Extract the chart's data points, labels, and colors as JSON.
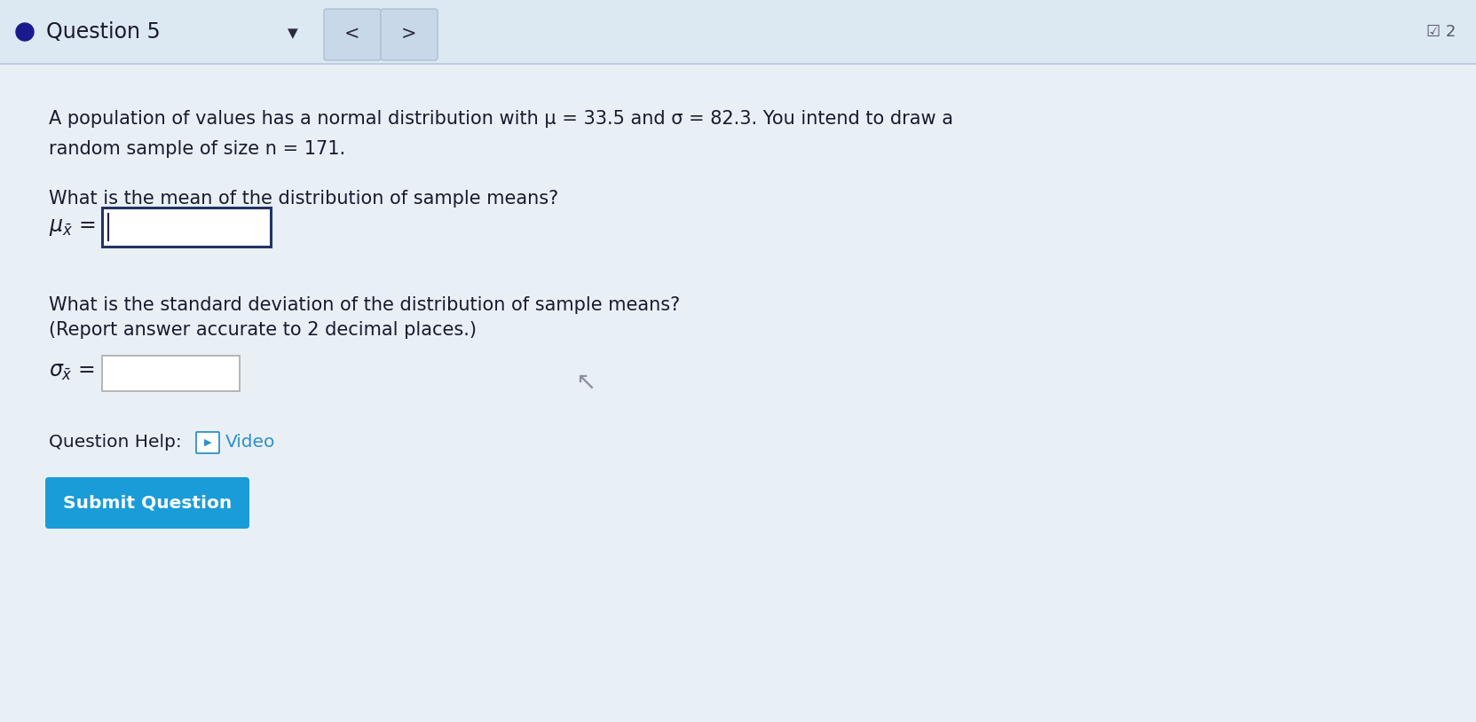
{
  "bg_color": "#d8e4ed",
  "header_bg": "#dce8f2",
  "body_bg": "#e8f0f6",
  "question_label": "Question 5",
  "question_dot_color": "#1a1a8e",
  "header_line_color": "#b8c8d8",
  "title_text_line1": "A population of values has a normal distribution with μ = 33.5 and σ = 82.3. You intend to draw a",
  "title_text_line2": "random sample of size n = 171.",
  "q1_text": "What is the mean of the distribution of sample means?",
  "q2_text_line1": "What is the standard deviation of the distribution of sample means?",
  "q2_text_line2": "(Report answer accurate to 2 decimal places.)",
  "help_text": "Question Help:",
  "video_text": "Video",
  "video_color": "#3090c8",
  "submit_text": "Submit Question",
  "submit_bg": "#1a9cd8",
  "submit_text_color": "#ffffff",
  "input_box1_edge": "#223366",
  "input_box2_edge": "#aaaaaa",
  "top_right_text": "☑ 2",
  "font_color_main": "#1a1a2e",
  "nav_box_color": "#c8d8e8",
  "nav_box_edge": "#b0c0d0"
}
